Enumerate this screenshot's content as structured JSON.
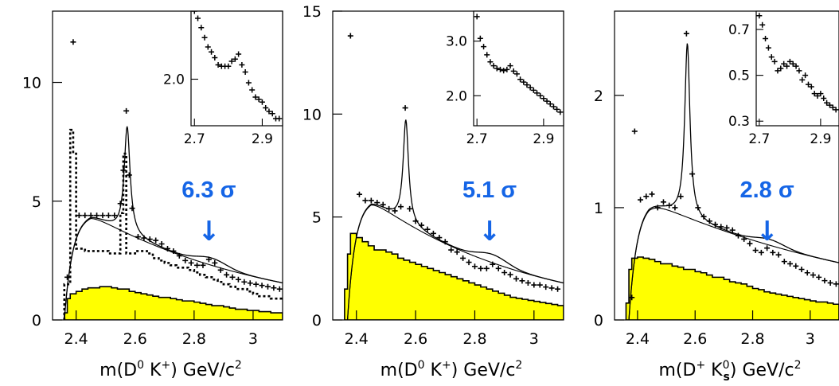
{
  "chart_data": [
    {
      "type": "scatter",
      "panel": 1,
      "xlabel_parts": {
        "m": "m(D",
        "s1": "0",
        "mid": " K",
        "s2": "+",
        "end": ") GeV/c",
        "s3": "2"
      },
      "xlim": [
        2.32,
        3.1
      ],
      "ylim": [
        0,
        13.0
      ],
      "x_ticks": [
        "2.4",
        "2.6",
        "2.8",
        "3"
      ],
      "y_ticks": [
        "0",
        "5",
        "10"
      ],
      "significance": "6.3 σ",
      "arrow": "↓",
      "arrow_x": 2.85,
      "colors": {
        "fill": "#ffff00",
        "annotation": "#1565e6"
      },
      "data_points": {
        "x": [
          2.37,
          2.39,
          2.41,
          2.43,
          2.45,
          2.47,
          2.49,
          2.51,
          2.53,
          2.55,
          2.56,
          2.57,
          2.58,
          2.59,
          2.61,
          2.63,
          2.65,
          2.67,
          2.69,
          2.71,
          2.73,
          2.75,
          2.77,
          2.79,
          2.81,
          2.83,
          2.85,
          2.87,
          2.89,
          2.91,
          2.93,
          2.95,
          2.97,
          2.99,
          3.01,
          3.03,
          3.05,
          3.07,
          3.09
        ],
        "y": [
          1.8,
          11.7,
          4.4,
          4.4,
          4.4,
          4.4,
          4.4,
          4.4,
          4.4,
          4.9,
          6.3,
          8.8,
          6.1,
          4.7,
          3.5,
          3.45,
          3.4,
          3.35,
          3.2,
          3.0,
          2.9,
          2.7,
          2.5,
          2.4,
          2.3,
          2.3,
          2.55,
          2.4,
          2.1,
          1.9,
          1.8,
          1.7,
          1.6,
          1.55,
          1.5,
          1.45,
          1.4,
          1.35,
          1.3
        ]
      },
      "dotted_histogram": {
        "edges": [
          2.36,
          2.38,
          2.39,
          2.4,
          2.41,
          2.43,
          2.45,
          2.47,
          2.49,
          2.51,
          2.53,
          2.55,
          2.56,
          2.57,
          2.58,
          2.6,
          2.62,
          2.64,
          2.66,
          2.68,
          2.7,
          2.72,
          2.74,
          2.76,
          2.78,
          2.8,
          2.82,
          2.84,
          2.86,
          2.88,
          2.9,
          2.92,
          2.94,
          2.96,
          2.98,
          3.0,
          3.02,
          3.04,
          3.06,
          3.08,
          3.1
        ],
        "values": [
          1.5,
          8.0,
          7.0,
          3.0,
          3.0,
          2.9,
          2.9,
          2.9,
          2.9,
          2.8,
          2.8,
          4.5,
          7.0,
          2.8,
          2.8,
          2.9,
          2.9,
          2.8,
          2.6,
          2.5,
          2.4,
          2.3,
          2.2,
          2.2,
          2.1,
          2.0,
          1.9,
          1.8,
          1.7,
          1.6,
          1.5,
          1.4,
          1.3,
          1.3,
          1.2,
          1.1,
          1.0,
          1.0,
          0.9,
          0.9
        ]
      },
      "yellow_histogram": {
        "edges": [
          2.36,
          2.37,
          2.38,
          2.4,
          2.42,
          2.44,
          2.46,
          2.48,
          2.5,
          2.52,
          2.54,
          2.56,
          2.58,
          2.6,
          2.62,
          2.64,
          2.66,
          2.68,
          2.7,
          2.72,
          2.74,
          2.76,
          2.78,
          2.8,
          2.82,
          2.84,
          2.86,
          2.88,
          2.9,
          2.92,
          2.94,
          2.96,
          2.98,
          3.0,
          3.02,
          3.04,
          3.06,
          3.08,
          3.1
        ],
        "values": [
          0.3,
          0.9,
          1.1,
          1.2,
          1.3,
          1.35,
          1.35,
          1.4,
          1.4,
          1.35,
          1.3,
          1.3,
          1.2,
          1.15,
          1.1,
          1.05,
          1.0,
          0.95,
          0.95,
          0.9,
          0.85,
          0.8,
          0.8,
          0.75,
          0.7,
          0.65,
          0.6,
          0.6,
          0.55,
          0.5,
          0.45,
          0.45,
          0.4,
          0.4,
          0.35,
          0.35,
          0.3,
          0.3
        ]
      },
      "fit": {
        "threshold": 2.36,
        "amp": 4.45,
        "rise": 0.028,
        "peak_x": 2.45,
        "decay": 0.62,
        "peak_pos": 2.573,
        "peak_w": 0.012,
        "peak_amp": 4.5,
        "bump_pos": 2.86,
        "bump_w": 0.05,
        "bump_amp": 0.3
      },
      "inset": {
        "xlim": [
          2.69,
          2.96
        ],
        "ylim": [
          1.35,
          2.95
        ],
        "x_ticks": [
          "2.7",
          "2.9"
        ],
        "y_ticks": [
          "2.0"
        ],
        "y_tick_values": [
          2.0
        ],
        "x": [
          2.7,
          2.71,
          2.72,
          2.73,
          2.74,
          2.75,
          2.76,
          2.77,
          2.78,
          2.79,
          2.8,
          2.81,
          2.82,
          2.83,
          2.84,
          2.85,
          2.86,
          2.87,
          2.88,
          2.89,
          2.9,
          2.91,
          2.92,
          2.93,
          2.94,
          2.95
        ],
        "y": [
          2.95,
          2.85,
          2.72,
          2.58,
          2.45,
          2.38,
          2.3,
          2.2,
          2.18,
          2.18,
          2.18,
          2.25,
          2.28,
          2.35,
          2.2,
          2.1,
          1.95,
          1.85,
          1.75,
          1.72,
          1.68,
          1.6,
          1.55,
          1.52,
          1.45,
          1.45
        ]
      }
    },
    {
      "type": "scatter",
      "panel": 2,
      "xlabel_parts": {
        "m": "m(D",
        "s1": "0",
        "mid": " K",
        "s2": "+",
        "end": ") GeV/c",
        "s3": "2"
      },
      "xlim": [
        2.32,
        3.1
      ],
      "ylim": [
        0,
        15.0
      ],
      "x_ticks": [
        "2.4",
        "2.6",
        "2.8",
        "3"
      ],
      "y_ticks": [
        "0",
        "5",
        "10",
        "15"
      ],
      "significance": "5.1 σ",
      "arrow": "↓",
      "arrow_x": 2.85,
      "data_points": {
        "x": [
          2.38,
          2.41,
          2.43,
          2.45,
          2.47,
          2.49,
          2.51,
          2.53,
          2.55,
          2.565,
          2.58,
          2.6,
          2.62,
          2.64,
          2.66,
          2.68,
          2.7,
          2.72,
          2.74,
          2.76,
          2.78,
          2.8,
          2.82,
          2.84,
          2.86,
          2.88,
          2.9,
          2.92,
          2.94,
          2.96,
          2.98,
          3.0,
          3.02,
          3.04,
          3.06,
          3.08
        ],
        "y": [
          13.8,
          6.1,
          5.8,
          5.8,
          5.7,
          5.6,
          5.4,
          5.3,
          5.5,
          10.3,
          5.4,
          4.8,
          4.6,
          4.4,
          4.2,
          4.0,
          3.8,
          3.4,
          3.3,
          3.0,
          2.8,
          2.6,
          2.5,
          2.5,
          2.7,
          2.5,
          2.3,
          2.2,
          2.0,
          1.9,
          1.8,
          1.7,
          1.7,
          1.6,
          1.55,
          1.5
        ]
      },
      "yellow_histogram": {
        "edges": [
          2.36,
          2.37,
          2.38,
          2.4,
          2.42,
          2.44,
          2.46,
          2.48,
          2.5,
          2.52,
          2.54,
          2.56,
          2.58,
          2.6,
          2.62,
          2.64,
          2.66,
          2.68,
          2.7,
          2.72,
          2.74,
          2.76,
          2.78,
          2.8,
          2.82,
          2.84,
          2.86,
          2.88,
          2.9,
          2.92,
          2.94,
          2.96,
          2.98,
          3.0,
          3.02,
          3.04,
          3.06,
          3.08,
          3.1
        ],
        "values": [
          1.5,
          3.2,
          4.2,
          4.0,
          3.8,
          3.6,
          3.4,
          3.4,
          3.3,
          3.2,
          3.0,
          2.9,
          2.8,
          2.7,
          2.6,
          2.5,
          2.4,
          2.3,
          2.2,
          2.1,
          2.0,
          1.9,
          1.8,
          1.7,
          1.6,
          1.5,
          1.4,
          1.3,
          1.2,
          1.1,
          1.05,
          1.0,
          0.95,
          0.9,
          0.85,
          0.8,
          0.75,
          0.7
        ]
      },
      "fit": {
        "threshold": 2.37,
        "amp": 5.85,
        "rise": 0.026,
        "peak_x": 2.45,
        "decay": 0.55,
        "peak_pos": 2.567,
        "peak_w": 0.011,
        "peak_amp": 5.0,
        "bump_pos": 2.86,
        "bump_w": 0.05,
        "bump_amp": 0.4
      },
      "inset": {
        "xlim": [
          2.69,
          2.96
        ],
        "ylim": [
          1.45,
          3.55
        ],
        "x_ticks": [
          "2.7",
          "2.9"
        ],
        "y_ticks": [
          "2.0",
          "3.0"
        ],
        "y_tick_values": [
          2.0,
          3.0
        ],
        "x": [
          2.7,
          2.71,
          2.72,
          2.73,
          2.74,
          2.75,
          2.76,
          2.77,
          2.78,
          2.79,
          2.8,
          2.81,
          2.82,
          2.83,
          2.84,
          2.85,
          2.86,
          2.87,
          2.88,
          2.89,
          2.9,
          2.91,
          2.92,
          2.93,
          2.94,
          2.95
        ],
        "y": [
          3.45,
          3.05,
          2.9,
          2.75,
          2.62,
          2.55,
          2.5,
          2.48,
          2.46,
          2.48,
          2.55,
          2.45,
          2.4,
          2.3,
          2.25,
          2.2,
          2.15,
          2.1,
          2.05,
          2.0,
          1.95,
          1.9,
          1.85,
          1.8,
          1.75,
          1.7
        ]
      }
    },
    {
      "type": "scatter",
      "panel": 3,
      "xlabel_parts": {
        "m": "m(D",
        "s1": "+",
        "mid": " K",
        "s2": "0",
        "s2b": "s",
        "end": ") GeV/c",
        "s3": "2"
      },
      "xlim": [
        2.32,
        3.1
      ],
      "ylim": [
        0,
        2.75
      ],
      "x_ticks": [
        "2.4",
        "2.6",
        "2.8",
        "3"
      ],
      "y_ticks": [
        "0",
        "1",
        "2"
      ],
      "significance": "2.8 σ",
      "arrow": "↓",
      "arrow_x": 2.85,
      "data_points": {
        "x": [
          2.38,
          2.39,
          2.41,
          2.43,
          2.45,
          2.47,
          2.49,
          2.51,
          2.53,
          2.55,
          2.57,
          2.59,
          2.61,
          2.63,
          2.65,
          2.67,
          2.69,
          2.71,
          2.73,
          2.75,
          2.77,
          2.79,
          2.81,
          2.83,
          2.85,
          2.87,
          2.89,
          2.91,
          2.93,
          2.95,
          2.97,
          2.99,
          3.01,
          3.03,
          3.05,
          3.07,
          3.09
        ],
        "y": [
          0.2,
          1.68,
          1.07,
          1.1,
          1.12,
          1.0,
          1.05,
          1.02,
          1.0,
          1.1,
          2.55,
          1.3,
          1.0,
          0.92,
          0.88,
          0.85,
          0.83,
          0.82,
          0.8,
          0.75,
          0.72,
          0.68,
          0.62,
          0.6,
          0.64,
          0.6,
          0.58,
          0.52,
          0.5,
          0.48,
          0.45,
          0.42,
          0.4,
          0.38,
          0.35,
          0.33,
          0.32
        ]
      },
      "yellow_histogram": {
        "edges": [
          2.36,
          2.37,
          2.38,
          2.4,
          2.42,
          2.44,
          2.46,
          2.48,
          2.5,
          2.52,
          2.54,
          2.56,
          2.58,
          2.6,
          2.62,
          2.64,
          2.66,
          2.68,
          2.7,
          2.72,
          2.74,
          2.76,
          2.78,
          2.8,
          2.82,
          2.84,
          2.86,
          2.88,
          2.9,
          2.92,
          2.94,
          2.96,
          2.98,
          3.0,
          3.02,
          3.04,
          3.06,
          3.08,
          3.1
        ],
        "values": [
          0.15,
          0.45,
          0.55,
          0.56,
          0.55,
          0.54,
          0.52,
          0.5,
          0.5,
          0.48,
          0.47,
          0.45,
          0.45,
          0.43,
          0.42,
          0.4,
          0.38,
          0.38,
          0.36,
          0.34,
          0.33,
          0.32,
          0.3,
          0.28,
          0.27,
          0.25,
          0.24,
          0.23,
          0.22,
          0.21,
          0.2,
          0.19,
          0.18,
          0.17,
          0.16,
          0.16,
          0.15,
          0.14
        ]
      },
      "fit": {
        "threshold": 2.37,
        "amp": 1.06,
        "rise": 0.028,
        "peak_x": 2.44,
        "decay": 0.9,
        "peak_pos": 2.573,
        "peak_w": 0.011,
        "peak_amp": 1.55,
        "bump_pos": 2.86,
        "bump_w": 0.05,
        "bump_amp": 0.05
      },
      "inset": {
        "xlim": [
          2.69,
          2.96
        ],
        "ylim": [
          0.28,
          0.78
        ],
        "x_ticks": [
          "2.7",
          "2.9"
        ],
        "y_ticks": [
          "0.3",
          "0.5",
          "0.7"
        ],
        "y_tick_values": [
          0.3,
          0.5,
          0.7
        ],
        "x": [
          2.7,
          2.71,
          2.72,
          2.73,
          2.74,
          2.75,
          2.76,
          2.77,
          2.78,
          2.79,
          2.8,
          2.81,
          2.82,
          2.83,
          2.84,
          2.85,
          2.86,
          2.87,
          2.88,
          2.89,
          2.9,
          2.91,
          2.92,
          2.93,
          2.94,
          2.95
        ],
        "y": [
          0.76,
          0.72,
          0.66,
          0.62,
          0.58,
          0.56,
          0.52,
          0.53,
          0.55,
          0.54,
          0.56,
          0.55,
          0.54,
          0.52,
          0.48,
          0.5,
          0.46,
          0.45,
          0.42,
          0.41,
          0.42,
          0.4,
          0.38,
          0.37,
          0.36,
          0.35
        ]
      }
    }
  ]
}
